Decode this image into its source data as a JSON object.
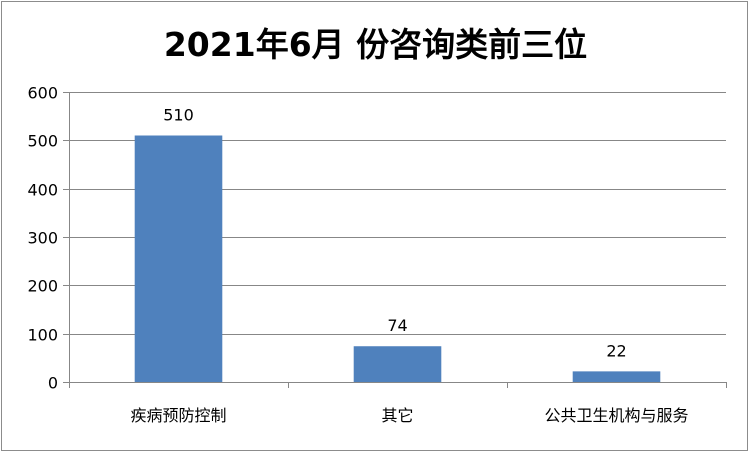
{
  "chart_data": {
    "type": "bar",
    "title": "2021年6月 份咨询类前三位",
    "categories": [
      "疾病预防控制",
      "其它",
      "公共卫生机构与服务"
    ],
    "values": [
      510,
      74,
      22
    ],
    "data_labels": [
      "510",
      "74",
      "22"
    ],
    "ylim": [
      0,
      600
    ],
    "yticks": [
      0,
      100,
      200,
      300,
      400,
      500,
      600
    ],
    "ytick_labels": [
      "0",
      "100",
      "200",
      "300",
      "400",
      "500",
      "600"
    ],
    "grid": true,
    "legend": "none",
    "bar_color": "#4f81bd",
    "grid_color": "#878787",
    "axis_color": "#878787"
  }
}
